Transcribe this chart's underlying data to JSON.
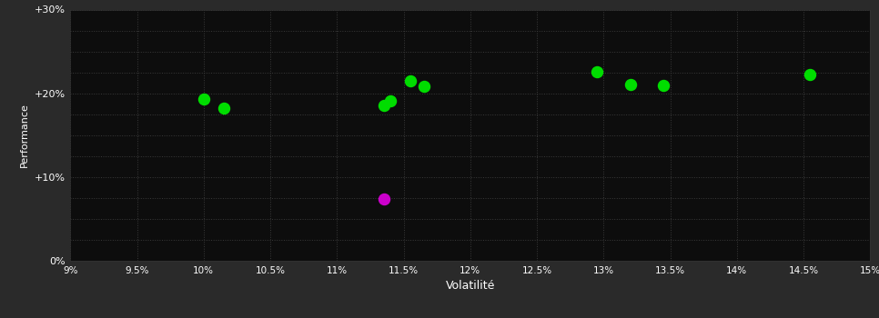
{
  "background_color": "#2a2a2a",
  "plot_bg_color": "#0d0d0d",
  "grid_color": "#3a3a3a",
  "text_color": "#ffffff",
  "xlabel": "Volatilité",
  "ylabel": "Performance",
  "xlim": [
    0.09,
    0.15
  ],
  "ylim": [
    0.0,
    0.3
  ],
  "xticks": [
    0.09,
    0.095,
    0.1,
    0.105,
    0.11,
    0.115,
    0.12,
    0.125,
    0.13,
    0.135,
    0.14,
    0.145,
    0.15
  ],
  "yticks": [
    0.0,
    0.1,
    0.2,
    0.3
  ],
  "ytick_labels": [
    "0%",
    "+10%",
    "+20%",
    "+30%"
  ],
  "xtick_labels": [
    "9%",
    "9.5%",
    "10%",
    "10.5%",
    "11%",
    "11.5%",
    "12%",
    "12.5%",
    "13%",
    "13.5%",
    "14%",
    "14.5%",
    "15%"
  ],
  "minor_yticks": [
    0.0,
    0.025,
    0.05,
    0.075,
    0.1,
    0.125,
    0.15,
    0.175,
    0.2,
    0.225,
    0.25,
    0.275,
    0.3
  ],
  "green_points": [
    [
      0.1,
      0.193
    ],
    [
      0.1015,
      0.182
    ],
    [
      0.1135,
      0.185
    ],
    [
      0.114,
      0.191
    ],
    [
      0.1155,
      0.215
    ],
    [
      0.1165,
      0.208
    ],
    [
      0.1295,
      0.226
    ],
    [
      0.132,
      0.211
    ],
    [
      0.1345,
      0.209
    ],
    [
      0.1455,
      0.222
    ]
  ],
  "magenta_points": [
    [
      0.1135,
      0.074
    ]
  ],
  "point_color_green": "#00dd00",
  "point_color_magenta": "#cc00cc",
  "marker_size": 5,
  "marker_size_magenta": 5
}
